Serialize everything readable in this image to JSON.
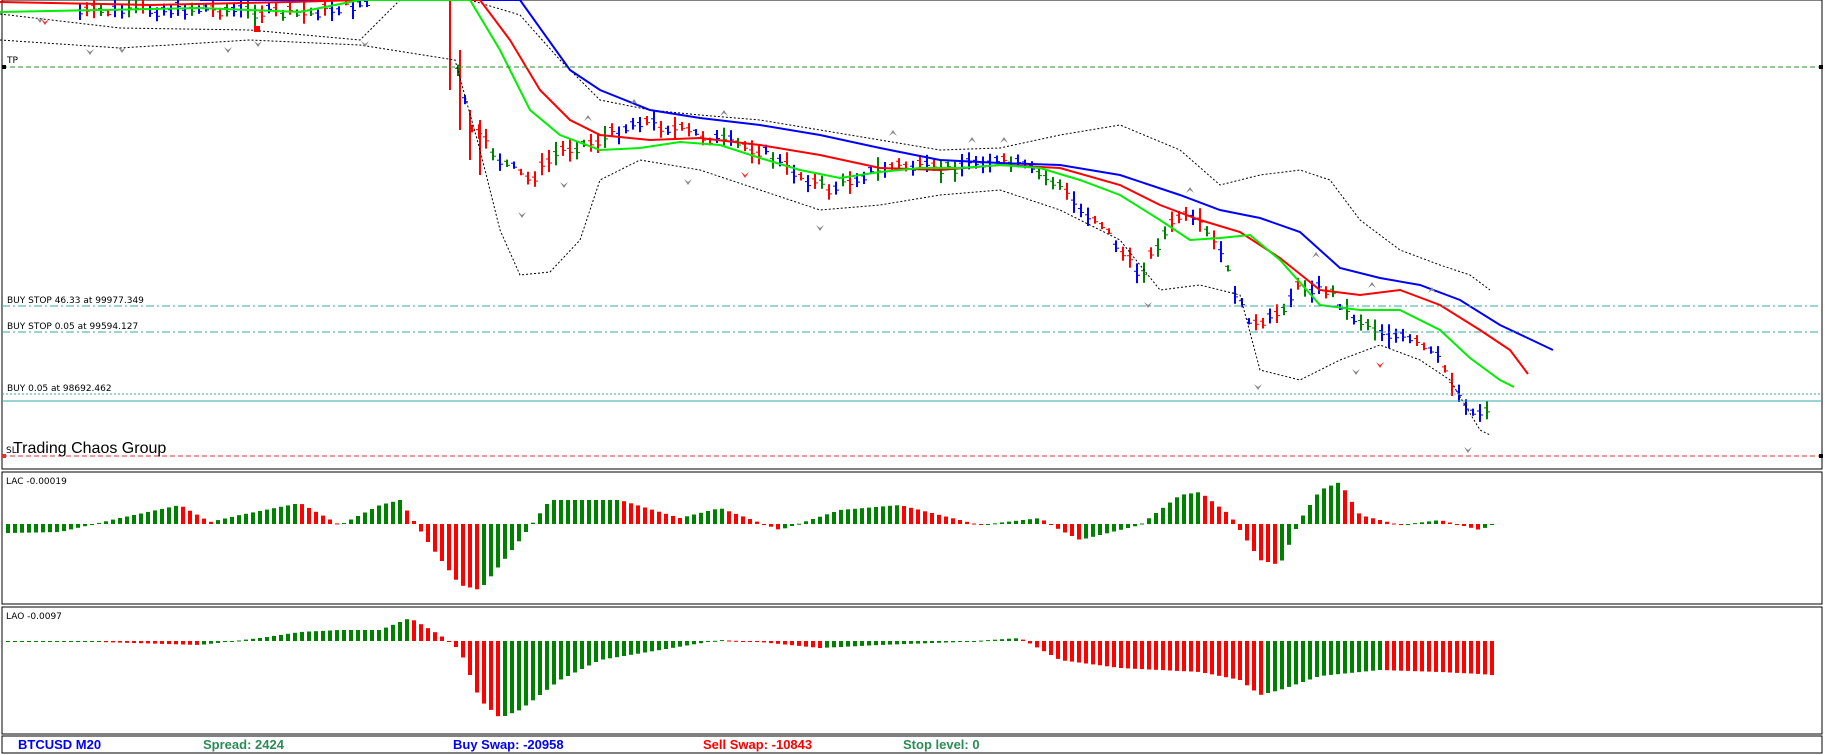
{
  "main_chart": {
    "order_lines": [
      {
        "label": "TP",
        "color": "#2e8b2e",
        "style": "dashed"
      },
      {
        "label": "BUY STOP 46.33 at 99977.349",
        "color": "#3aa7a7",
        "style": "dashdot"
      },
      {
        "label": "BUY STOP 0.05 at 99594.127",
        "color": "#3aa7a7",
        "style": "dashdot"
      },
      {
        "label": "BUY 0.05 at 98692.462",
        "color": "#3aa7a7",
        "style": "dotted"
      },
      {
        "label": "SL",
        "color": "#e03030",
        "style": "dashed"
      }
    ],
    "watermark": "Trading Chaos Group",
    "colors": {
      "up_bar": "#0000ff",
      "down_bar": "#ff0000",
      "neutral_bar": "#008000",
      "jaw": "#0000ff",
      "teeth": "#ff0000",
      "lips": "#00ee00",
      "bands": "#000000"
    }
  },
  "lac_panel": {
    "label": "LAC -0.00019",
    "up_color": "#008000",
    "down_color": "#ff0000"
  },
  "lao_panel": {
    "label": "LAO -0.0097",
    "up_color": "#008000",
    "down_color": "#ff0000"
  },
  "status_bar": {
    "symbol": "BTCUSD M20",
    "spread": "Spread: 2424",
    "buy_swap": "Buy Swap: -20958",
    "sell_swap": "Sell Swap: -10843",
    "stop_level": "Stop level: 0",
    "colors": {
      "symbol": "#0000ff",
      "spread": "#2e8b57",
      "buy_swap": "#0000ff",
      "sell_swap": "#ff0000",
      "stop_level": "#2e8b57"
    }
  }
}
